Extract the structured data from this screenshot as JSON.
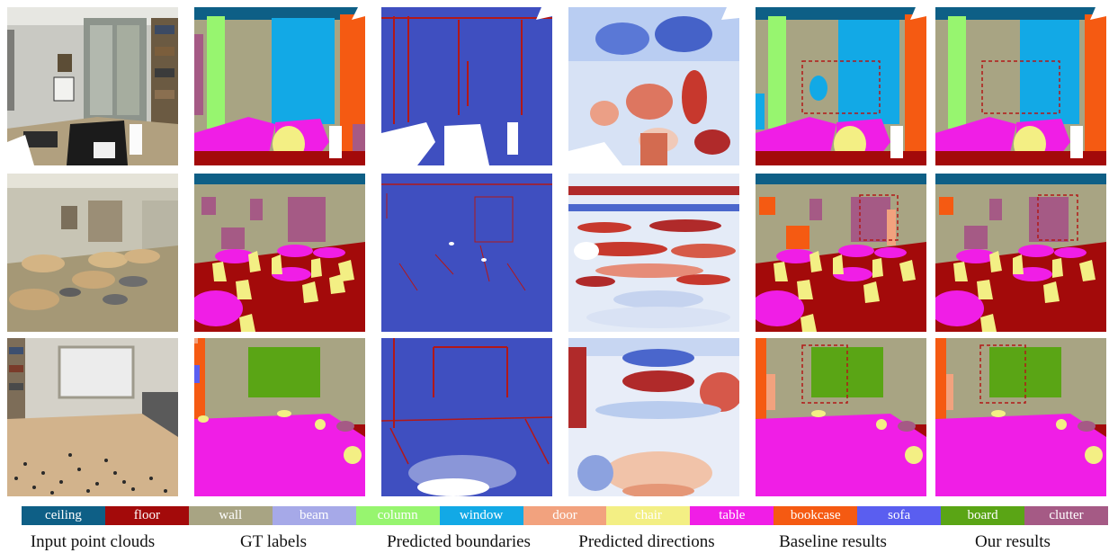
{
  "legend": [
    {
      "label": "ceiling",
      "color": "#0e5f86"
    },
    {
      "label": "floor",
      "color": "#a30a0a"
    },
    {
      "label": "wall",
      "color": "#a8a483"
    },
    {
      "label": "beam",
      "color": "#a6a9e8"
    },
    {
      "label": "column",
      "color": "#97f56f"
    },
    {
      "label": "window",
      "color": "#12a9e6"
    },
    {
      "label": "door",
      "color": "#f2a27e"
    },
    {
      "label": "chair",
      "color": "#f3ef84"
    },
    {
      "label": "table",
      "color": "#f01ee6"
    },
    {
      "label": "bookcase",
      "color": "#f55a12"
    },
    {
      "label": "sofa",
      "color": "#5a5ef0"
    },
    {
      "label": "board",
      "color": "#5aa515"
    },
    {
      "label": "clutter",
      "color": "#a55a85"
    }
  ],
  "captions": [
    "Input point clouds",
    "GT labels",
    "Predicted boundaries",
    "Predicted directions",
    "Baseline results",
    "Our results"
  ]
}
